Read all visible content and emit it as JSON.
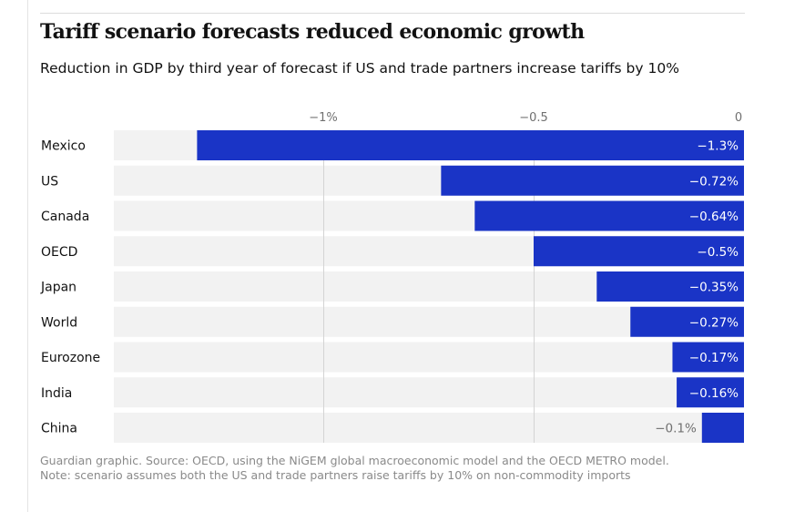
{
  "header": {
    "title": "Tariff scenario forecasts reduced economic growth",
    "subtitle": "Reduction in GDP by third year of forecast if US and trade partners increase tariffs by 10%"
  },
  "chart_data": {
    "type": "bar",
    "orientation": "horizontal",
    "title": "Tariff scenario forecasts reduced economic growth",
    "subtitle": "Reduction in GDP by third year of forecast if US and trade partners increase tariffs by 10%",
    "categories": [
      "Mexico",
      "US",
      "Canada",
      "OECD",
      "Japan",
      "World",
      "Eurozone",
      "India",
      "China"
    ],
    "values": [
      -1.3,
      -0.72,
      -0.64,
      -0.5,
      -0.35,
      -0.27,
      -0.17,
      -0.16,
      -0.1
    ],
    "value_labels": [
      "−1.3%",
      "−0.72%",
      "−0.64%",
      "−0.5%",
      "−0.35%",
      "−0.27%",
      "−0.17%",
      "−0.16%",
      "−0.1%"
    ],
    "xlim": [
      -1.5,
      0
    ],
    "xticks": [
      -1,
      -0.5,
      0
    ],
    "xtick_labels": [
      "−1%",
      "−0.5",
      "0"
    ],
    "xlabel": "",
    "ylabel": "",
    "gridlines": true,
    "bar_color": "#1a34c6",
    "track_color": "#f2f2f2",
    "grid_color": "#d4d4d4"
  },
  "footer": {
    "source": "Guardian graphic. Source: OECD, using the NiGEM global macroeconomic model and the OECD METRO model.",
    "note": "Note: scenario assumes both the US and trade partners raise tariffs by 10% on non-commodity imports"
  }
}
